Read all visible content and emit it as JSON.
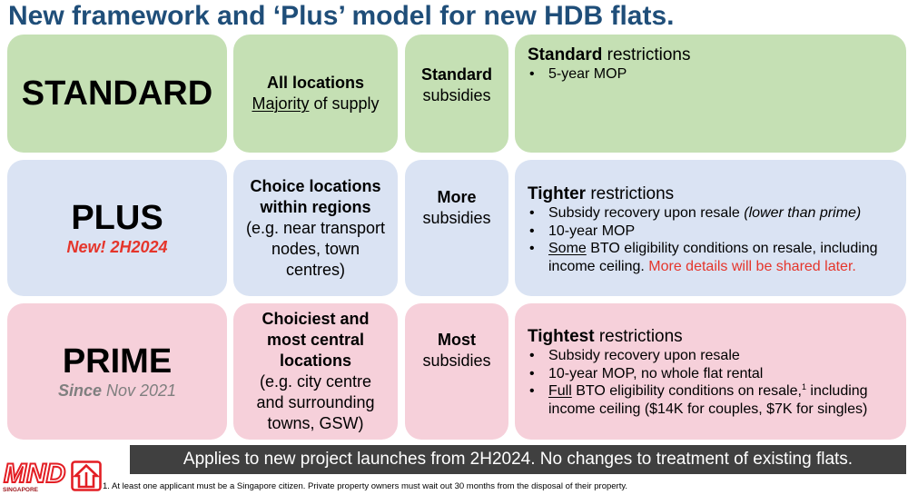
{
  "title": "New framework and ‘Plus’ model for new HDB flats.",
  "colors": {
    "title": "#1f4e79",
    "standard_row": "#c5e0b4",
    "plus_row": "#dae3f3",
    "prime_row": "#f6d0da",
    "highlight_red": "#e5352b",
    "muted_gray": "#7f7f7f",
    "banner_bg": "#404040",
    "banner_text": "#ffffff",
    "logo_red": "#e31e24",
    "logo_dark_red": "#9e1b20"
  },
  "standard": {
    "name": "STANDARD",
    "locations": {
      "heading": "All locations",
      "detail_underlined": "Majority",
      "detail_rest": "of supply"
    },
    "subsidies": {
      "level": "Standard",
      "label": "subsidies"
    },
    "restrictions": {
      "level": "Standard",
      "label": "restrictions",
      "bullets": [
        {
          "text": "5-year MOP"
        }
      ]
    }
  },
  "plus": {
    "name": "PLUS",
    "note": "New! 2H2024",
    "locations": {
      "heading_lines": [
        "Choice locations",
        "within regions"
      ],
      "detail_lines": [
        "(e.g. near transport",
        "nodes, town",
        "centres)"
      ]
    },
    "subsidies": {
      "level": "More",
      "label": "subsidies"
    },
    "restrictions": {
      "level": "Tighter",
      "label": "restrictions",
      "bullets": [
        {
          "text": "Subsidy recovery upon resale",
          "italic_note": "(lower than prime)"
        },
        {
          "text": "10-year MOP"
        },
        {
          "underlined": "Some",
          "text": "BTO eligibility conditions on resale, including income ceiling.",
          "highlight": "More details will be shared later."
        }
      ]
    }
  },
  "prime": {
    "name": "PRIME",
    "note_emphasis": "Since",
    "note_rest": "Nov 2021",
    "locations": {
      "heading_lines": [
        "Choiciest and",
        "most central",
        "locations"
      ],
      "detail_lines": [
        "(e.g. city centre",
        "and surrounding",
        "towns, GSW)"
      ]
    },
    "subsidies": {
      "level": "Most",
      "label": "subsidies"
    },
    "restrictions": {
      "level": "Tightest",
      "label": "restrictions",
      "bullets": [
        {
          "text": "Subsidy recovery upon resale"
        },
        {
          "text": "10-year MOP, no whole flat rental"
        },
        {
          "underlined": "Full",
          "text": "BTO eligibility conditions on resale,",
          "footnote_ref": "1",
          "text_after": "including income ceiling ($14K for couples, $7K for singles)"
        }
      ]
    }
  },
  "banner": "Applies to new project launches from 2H2024. No changes to treatment of existing flats.",
  "footnote": "1. At least one applicant must be a Singapore citizen. Private property owners must wait out 30 months from the disposal of their property.",
  "logos": {
    "mnd": {
      "wordmark": "MND",
      "caption": "SINGAPORE"
    },
    "hdb": {
      "icon": "hdb-house-logo"
    }
  }
}
